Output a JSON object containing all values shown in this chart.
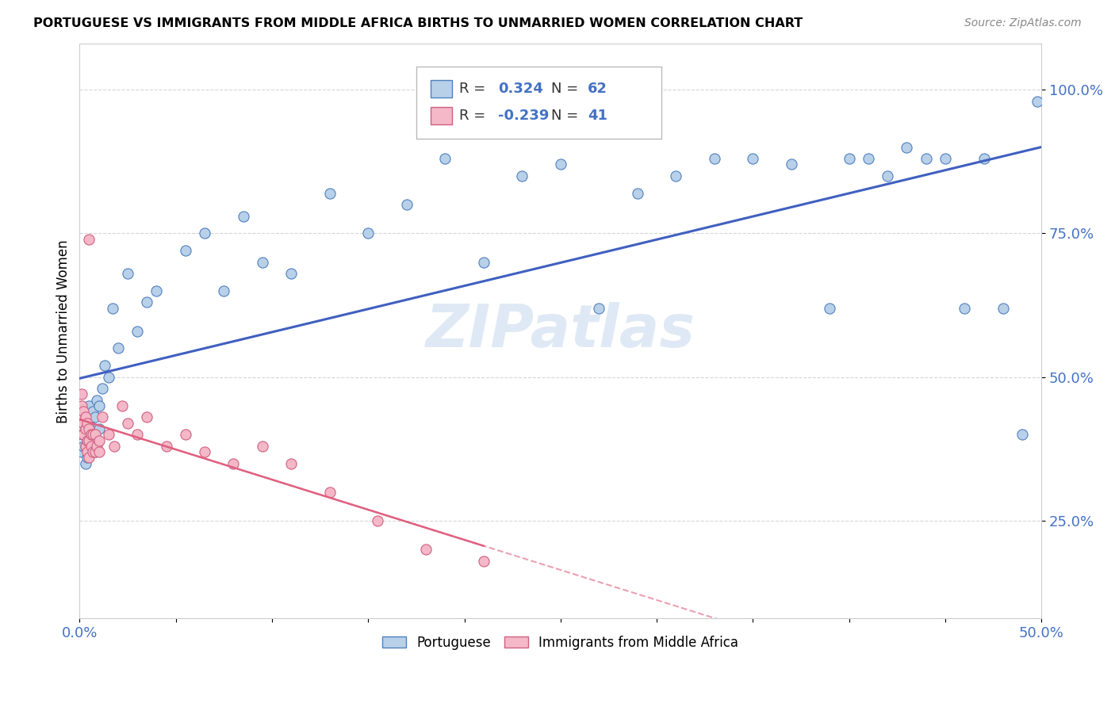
{
  "title": "PORTUGUESE VS IMMIGRANTS FROM MIDDLE AFRICA BIRTHS TO UNMARRIED WOMEN CORRELATION CHART",
  "source": "Source: ZipAtlas.com",
  "ylabel": "Births to Unmarried Women",
  "watermark": "ZIPatlas",
  "xlim": [
    0.0,
    0.5
  ],
  "ylim": [
    0.08,
    1.08
  ],
  "blue_R": 0.324,
  "blue_N": 62,
  "pink_R": -0.239,
  "pink_N": 41,
  "blue_color": "#b8d0e8",
  "pink_color": "#f4b8c8",
  "blue_edge_color": "#5080c0",
  "pink_edge_color": "#d06080",
  "blue_line_color": "#4060c0",
  "pink_line_color": "#e06080",
  "legend1_label": "Portuguese",
  "legend2_label": "Immigrants from Middle Africa",
  "blue_x": [
    0.001,
    0.001,
    0.002,
    0.002,
    0.003,
    0.003,
    0.003,
    0.004,
    0.004,
    0.004,
    0.005,
    0.005,
    0.005,
    0.006,
    0.006,
    0.007,
    0.007,
    0.008,
    0.008,
    0.009,
    0.01,
    0.01,
    0.012,
    0.013,
    0.015,
    0.017,
    0.02,
    0.025,
    0.03,
    0.035,
    0.04,
    0.055,
    0.065,
    0.075,
    0.085,
    0.095,
    0.11,
    0.13,
    0.15,
    0.17,
    0.19,
    0.21,
    0.23,
    0.25,
    0.27,
    0.29,
    0.31,
    0.33,
    0.35,
    0.37,
    0.39,
    0.4,
    0.41,
    0.42,
    0.43,
    0.44,
    0.45,
    0.46,
    0.47,
    0.48,
    0.49,
    0.498
  ],
  "blue_y": [
    0.37,
    0.4,
    0.38,
    0.42,
    0.35,
    0.38,
    0.42,
    0.36,
    0.4,
    0.44,
    0.38,
    0.42,
    0.45,
    0.39,
    0.43,
    0.4,
    0.44,
    0.37,
    0.43,
    0.46,
    0.41,
    0.45,
    0.48,
    0.52,
    0.5,
    0.62,
    0.55,
    0.68,
    0.58,
    0.63,
    0.65,
    0.72,
    0.75,
    0.65,
    0.78,
    0.7,
    0.68,
    0.82,
    0.75,
    0.8,
    0.88,
    0.7,
    0.85,
    0.87,
    0.62,
    0.82,
    0.85,
    0.88,
    0.88,
    0.87,
    0.62,
    0.88,
    0.88,
    0.85,
    0.9,
    0.88,
    0.88,
    0.62,
    0.88,
    0.62,
    0.4,
    0.98
  ],
  "pink_x": [
    0.001,
    0.001,
    0.001,
    0.002,
    0.002,
    0.002,
    0.003,
    0.003,
    0.003,
    0.004,
    0.004,
    0.004,
    0.005,
    0.005,
    0.005,
    0.006,
    0.006,
    0.007,
    0.007,
    0.008,
    0.008,
    0.009,
    0.01,
    0.01,
    0.012,
    0.015,
    0.018,
    0.022,
    0.025,
    0.03,
    0.035,
    0.045,
    0.055,
    0.065,
    0.08,
    0.095,
    0.11,
    0.13,
    0.155,
    0.18,
    0.21
  ],
  "pink_y": [
    0.43,
    0.45,
    0.47,
    0.4,
    0.42,
    0.44,
    0.38,
    0.41,
    0.43,
    0.37,
    0.39,
    0.42,
    0.36,
    0.39,
    0.41,
    0.38,
    0.4,
    0.37,
    0.4,
    0.37,
    0.4,
    0.38,
    0.37,
    0.39,
    0.43,
    0.4,
    0.38,
    0.45,
    0.42,
    0.4,
    0.43,
    0.38,
    0.4,
    0.37,
    0.35,
    0.38,
    0.35,
    0.3,
    0.25,
    0.2,
    0.18
  ],
  "pink_outlier_x": [
    0.005
  ],
  "pink_outlier_y": [
    0.74
  ]
}
